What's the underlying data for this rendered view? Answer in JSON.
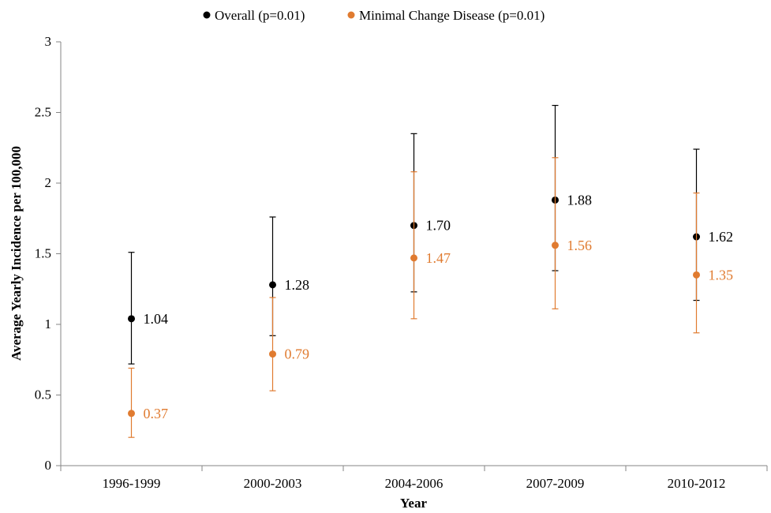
{
  "chart_data": {
    "type": "scatter",
    "xlabel": "Year",
    "ylabel": "Average Yearly Incidence per 100,000",
    "categories": [
      "1996-1999",
      "2000-2003",
      "2004-2006",
      "2007-2009",
      "2010-2012"
    ],
    "ylim": [
      0,
      3
    ],
    "yticks": [
      "0",
      "0.5",
      "1",
      "1.5",
      "2",
      "2.5",
      "3"
    ],
    "grid": false,
    "legend_position": "top-center",
    "series": [
      {
        "name": "Overall (p=0.01)",
        "color": "#000000",
        "values": [
          1.04,
          1.28,
          1.7,
          1.88,
          1.62
        ],
        "labels": [
          "1.04",
          "1.28",
          "1.70",
          "1.88",
          "1.62"
        ],
        "error_low": [
          0.72,
          0.92,
          1.23,
          1.38,
          1.17
        ],
        "error_high": [
          1.51,
          1.76,
          2.35,
          2.55,
          2.24
        ]
      },
      {
        "name": "Minimal Change Disease (p=0.01)",
        "color": "#E07B30",
        "values": [
          0.37,
          0.79,
          1.47,
          1.56,
          1.35
        ],
        "labels": [
          "0.37",
          "0.79",
          "1.47",
          "1.56",
          "1.35"
        ],
        "error_low": [
          0.2,
          0.53,
          1.04,
          1.11,
          0.94
        ],
        "error_high": [
          0.69,
          1.19,
          2.08,
          2.18,
          1.93
        ]
      }
    ]
  }
}
